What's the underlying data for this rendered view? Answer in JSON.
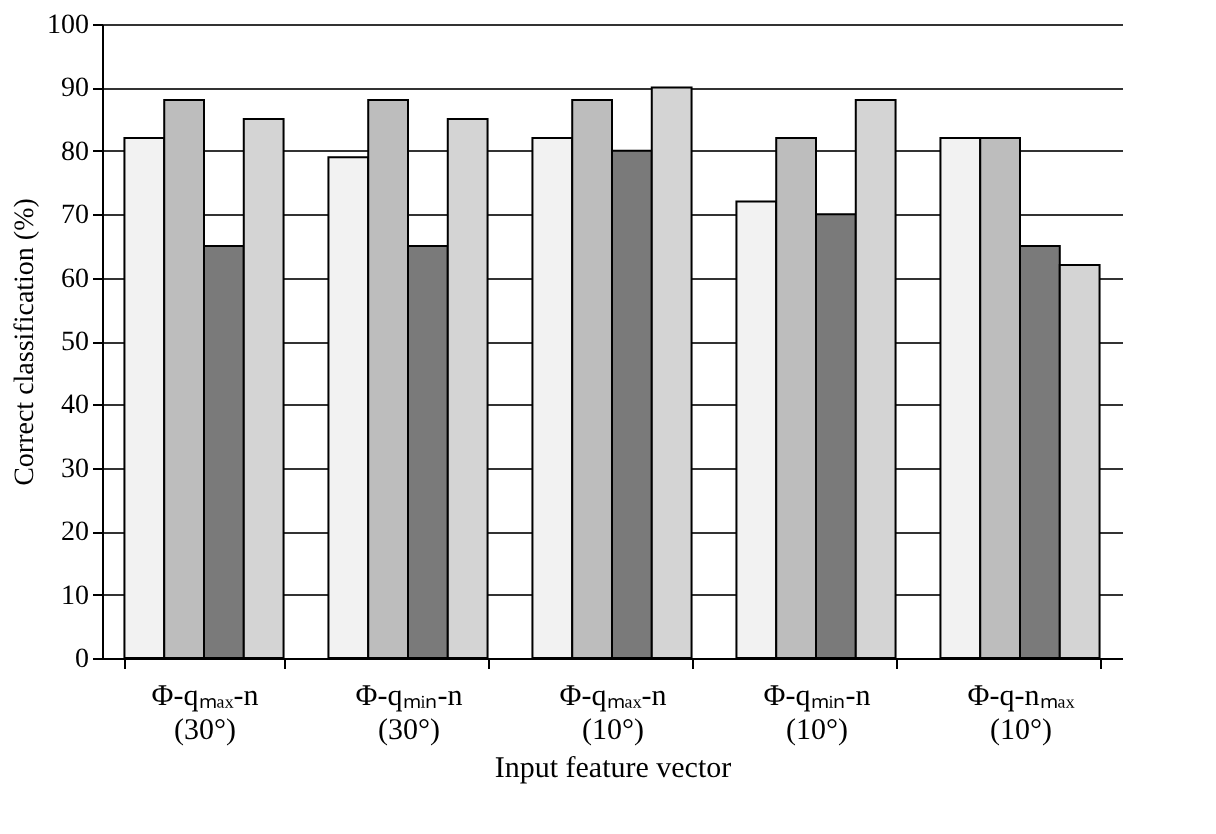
{
  "chart_data": {
    "type": "bar",
    "xlabel": "Input feature vector",
    "ylabel": "Correct classification (%)",
    "categories": [
      "Φ-qₘₐₓ-n\n(30°)",
      "Φ-qₘᵢₙ-n\n(30°)",
      "Φ-qₘₐₓ-n\n(10°)",
      "Φ-qₘᵢₙ-n\n(10°)",
      "Φ-q-nₘₐₓ\n(10°)"
    ],
    "series": [
      {
        "color": "#f2f2f2",
        "values": [
          82,
          79,
          82,
          72,
          82
        ]
      },
      {
        "color": "#bdbdbd",
        "values": [
          88,
          88,
          88,
          82,
          82
        ]
      },
      {
        "color": "#7a7a7a",
        "values": [
          65,
          65,
          80,
          70,
          65
        ]
      },
      {
        "color": "#d4d4d4",
        "values": [
          85,
          85,
          90,
          88,
          62
        ]
      }
    ],
    "ylim": [
      0,
      100
    ],
    "yticks": [
      0,
      10,
      20,
      30,
      40,
      50,
      60,
      70,
      80,
      90,
      100
    ],
    "grid": "y",
    "legend": false
  }
}
